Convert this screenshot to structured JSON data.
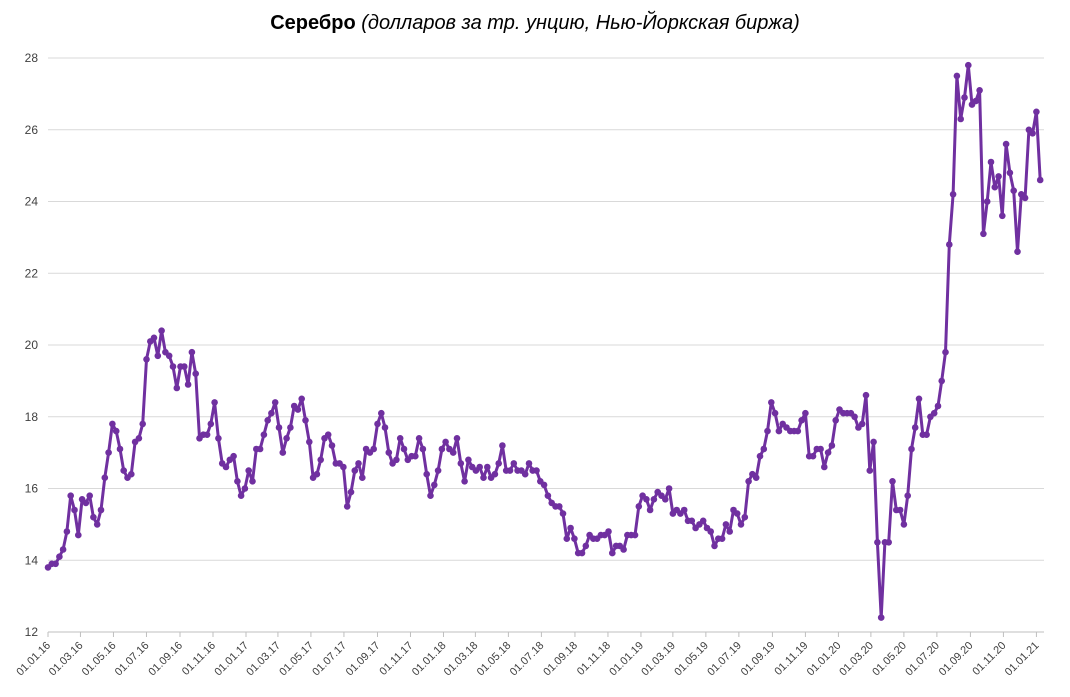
{
  "chart_data": {
    "type": "line",
    "title": "Серебро",
    "subtitle": "(долларов за тр. унцию, Нью-Йоркская биржа)",
    "ylim": [
      12,
      28
    ],
    "yticks": [
      12,
      14,
      16,
      18,
      20,
      22,
      24,
      26,
      28
    ],
    "ytick_labels": [
      "12",
      "14",
      "16",
      "18",
      "20",
      "22",
      "24",
      "26",
      "28"
    ],
    "x_start": "2016-01-01",
    "x_end": "2021-01-15",
    "xticks": [
      "2016-01-01",
      "2016-03-01",
      "2016-05-01",
      "2016-07-01",
      "2016-09-01",
      "2016-11-01",
      "2017-01-01",
      "2017-03-01",
      "2017-05-01",
      "2017-07-01",
      "2017-09-01",
      "2017-11-01",
      "2018-01-01",
      "2018-03-01",
      "2018-05-01",
      "2018-07-01",
      "2018-09-01",
      "2018-11-01",
      "2019-01-01",
      "2019-03-01",
      "2019-05-01",
      "2019-07-01",
      "2019-09-01",
      "2019-11-01",
      "2020-01-01",
      "2020-03-01",
      "2020-05-01",
      "2020-07-01",
      "2020-09-01",
      "2020-11-01",
      "2021-01-01"
    ],
    "xtick_labels": [
      "01.01.16",
      "01.03.16",
      "01.05.16",
      "01.07.16",
      "01.09.16",
      "01.11.16",
      "01.01.17",
      "01.03.17",
      "01.05.17",
      "01.07.17",
      "01.09.17",
      "01.11.17",
      "01.01.18",
      "01.03.18",
      "01.05.18",
      "01.07.18",
      "01.09.18",
      "01.11.18",
      "01.01.19",
      "01.03.19",
      "01.05.19",
      "01.07.19",
      "01.09.19",
      "01.11.19",
      "01.01.20",
      "01.03.20",
      "01.05.20",
      "01.07.20",
      "01.09.20",
      "01.11.20",
      "01.01.21"
    ],
    "grid": true,
    "legend": "none",
    "color": "#7030a0",
    "series": [
      {
        "values": [
          [
            "2016-01-01",
            13.8
          ],
          [
            "2016-01-08",
            13.9
          ],
          [
            "2016-01-15",
            13.9
          ],
          [
            "2016-01-22",
            14.1
          ],
          [
            "2016-01-29",
            14.3
          ],
          [
            "2016-02-05",
            14.8
          ],
          [
            "2016-02-12",
            15.8
          ],
          [
            "2016-02-19",
            15.4
          ],
          [
            "2016-02-26",
            14.7
          ],
          [
            "2016-03-04",
            15.7
          ],
          [
            "2016-03-11",
            15.6
          ],
          [
            "2016-03-18",
            15.8
          ],
          [
            "2016-03-25",
            15.2
          ],
          [
            "2016-04-01",
            15.0
          ],
          [
            "2016-04-08",
            15.4
          ],
          [
            "2016-04-15",
            16.3
          ],
          [
            "2016-04-22",
            17.0
          ],
          [
            "2016-04-29",
            17.8
          ],
          [
            "2016-05-06",
            17.6
          ],
          [
            "2016-05-13",
            17.1
          ],
          [
            "2016-05-20",
            16.5
          ],
          [
            "2016-05-27",
            16.3
          ],
          [
            "2016-06-03",
            16.4
          ],
          [
            "2016-06-10",
            17.3
          ],
          [
            "2016-06-17",
            17.4
          ],
          [
            "2016-06-24",
            17.8
          ],
          [
            "2016-07-01",
            19.6
          ],
          [
            "2016-07-08",
            20.1
          ],
          [
            "2016-07-15",
            20.2
          ],
          [
            "2016-07-22",
            19.7
          ],
          [
            "2016-07-29",
            20.4
          ],
          [
            "2016-08-05",
            19.8
          ],
          [
            "2016-08-12",
            19.7
          ],
          [
            "2016-08-19",
            19.4
          ],
          [
            "2016-08-26",
            18.8
          ],
          [
            "2016-09-02",
            19.4
          ],
          [
            "2016-09-09",
            19.4
          ],
          [
            "2016-09-16",
            18.9
          ],
          [
            "2016-09-23",
            19.8
          ],
          [
            "2016-09-30",
            19.2
          ],
          [
            "2016-10-07",
            17.4
          ],
          [
            "2016-10-14",
            17.5
          ],
          [
            "2016-10-21",
            17.5
          ],
          [
            "2016-10-28",
            17.8
          ],
          [
            "2016-11-04",
            18.4
          ],
          [
            "2016-11-11",
            17.4
          ],
          [
            "2016-11-18",
            16.7
          ],
          [
            "2016-11-25",
            16.6
          ],
          [
            "2016-12-02",
            16.8
          ],
          [
            "2016-12-09",
            16.9
          ],
          [
            "2016-12-16",
            16.2
          ],
          [
            "2016-12-23",
            15.8
          ],
          [
            "2016-12-30",
            16.0
          ],
          [
            "2017-01-06",
            16.5
          ],
          [
            "2017-01-13",
            16.2
          ],
          [
            "2017-01-20",
            17.1
          ],
          [
            "2017-01-27",
            17.1
          ],
          [
            "2017-02-03",
            17.5
          ],
          [
            "2017-02-10",
            17.9
          ],
          [
            "2017-02-17",
            18.1
          ],
          [
            "2017-02-24",
            18.4
          ],
          [
            "2017-03-03",
            17.7
          ],
          [
            "2017-03-10",
            17.0
          ],
          [
            "2017-03-17",
            17.4
          ],
          [
            "2017-03-24",
            17.7
          ],
          [
            "2017-03-31",
            18.3
          ],
          [
            "2017-04-07",
            18.2
          ],
          [
            "2017-04-14",
            18.5
          ],
          [
            "2017-04-21",
            17.9
          ],
          [
            "2017-04-28",
            17.3
          ],
          [
            "2017-05-05",
            16.3
          ],
          [
            "2017-05-12",
            16.4
          ],
          [
            "2017-05-19",
            16.8
          ],
          [
            "2017-05-26",
            17.4
          ],
          [
            "2017-06-02",
            17.5
          ],
          [
            "2017-06-09",
            17.2
          ],
          [
            "2017-06-16",
            16.7
          ],
          [
            "2017-06-23",
            16.7
          ],
          [
            "2017-06-30",
            16.6
          ],
          [
            "2017-07-07",
            15.5
          ],
          [
            "2017-07-14",
            15.9
          ],
          [
            "2017-07-21",
            16.5
          ],
          [
            "2017-07-28",
            16.7
          ],
          [
            "2017-08-04",
            16.3
          ],
          [
            "2017-08-11",
            17.1
          ],
          [
            "2017-08-18",
            17.0
          ],
          [
            "2017-08-25",
            17.1
          ],
          [
            "2017-09-01",
            17.8
          ],
          [
            "2017-09-08",
            18.1
          ],
          [
            "2017-09-15",
            17.7
          ],
          [
            "2017-09-22",
            17.0
          ],
          [
            "2017-09-29",
            16.7
          ],
          [
            "2017-10-06",
            16.8
          ],
          [
            "2017-10-13",
            17.4
          ],
          [
            "2017-10-20",
            17.1
          ],
          [
            "2017-10-27",
            16.8
          ],
          [
            "2017-11-03",
            16.9
          ],
          [
            "2017-11-10",
            16.9
          ],
          [
            "2017-11-17",
            17.4
          ],
          [
            "2017-11-24",
            17.1
          ],
          [
            "2017-12-01",
            16.4
          ],
          [
            "2017-12-08",
            15.8
          ],
          [
            "2017-12-15",
            16.1
          ],
          [
            "2017-12-22",
            16.5
          ],
          [
            "2017-12-29",
            17.1
          ],
          [
            "2018-01-05",
            17.3
          ],
          [
            "2018-01-12",
            17.1
          ],
          [
            "2018-01-19",
            17.0
          ],
          [
            "2018-01-26",
            17.4
          ],
          [
            "2018-02-02",
            16.7
          ],
          [
            "2018-02-09",
            16.2
          ],
          [
            "2018-02-16",
            16.8
          ],
          [
            "2018-02-23",
            16.6
          ],
          [
            "2018-03-02",
            16.5
          ],
          [
            "2018-03-09",
            16.6
          ],
          [
            "2018-03-16",
            16.3
          ],
          [
            "2018-03-23",
            16.6
          ],
          [
            "2018-03-30",
            16.3
          ],
          [
            "2018-04-06",
            16.4
          ],
          [
            "2018-04-13",
            16.7
          ],
          [
            "2018-04-20",
            17.2
          ],
          [
            "2018-04-27",
            16.5
          ],
          [
            "2018-05-04",
            16.5
          ],
          [
            "2018-05-11",
            16.7
          ],
          [
            "2018-05-18",
            16.5
          ],
          [
            "2018-05-25",
            16.5
          ],
          [
            "2018-06-01",
            16.4
          ],
          [
            "2018-06-08",
            16.7
          ],
          [
            "2018-06-15",
            16.5
          ],
          [
            "2018-06-22",
            16.5
          ],
          [
            "2018-06-29",
            16.2
          ],
          [
            "2018-07-06",
            16.1
          ],
          [
            "2018-07-13",
            15.8
          ],
          [
            "2018-07-20",
            15.6
          ],
          [
            "2018-07-27",
            15.5
          ],
          [
            "2018-08-03",
            15.5
          ],
          [
            "2018-08-10",
            15.3
          ],
          [
            "2018-08-17",
            14.6
          ],
          [
            "2018-08-24",
            14.9
          ],
          [
            "2018-08-31",
            14.6
          ],
          [
            "2018-09-07",
            14.2
          ],
          [
            "2018-09-14",
            14.2
          ],
          [
            "2018-09-21",
            14.4
          ],
          [
            "2018-09-28",
            14.7
          ],
          [
            "2018-10-05",
            14.6
          ],
          [
            "2018-10-12",
            14.6
          ],
          [
            "2018-10-19",
            14.7
          ],
          [
            "2018-10-26",
            14.7
          ],
          [
            "2018-11-02",
            14.8
          ],
          [
            "2018-11-09",
            14.2
          ],
          [
            "2018-11-16",
            14.4
          ],
          [
            "2018-11-23",
            14.4
          ],
          [
            "2018-11-30",
            14.3
          ],
          [
            "2018-12-07",
            14.7
          ],
          [
            "2018-12-14",
            14.7
          ],
          [
            "2018-12-21",
            14.7
          ],
          [
            "2018-12-28",
            15.5
          ],
          [
            "2019-01-04",
            15.8
          ],
          [
            "2019-01-11",
            15.7
          ],
          [
            "2019-01-18",
            15.4
          ],
          [
            "2019-01-25",
            15.7
          ],
          [
            "2019-02-01",
            15.9
          ],
          [
            "2019-02-08",
            15.8
          ],
          [
            "2019-02-15",
            15.7
          ],
          [
            "2019-02-22",
            16.0
          ],
          [
            "2019-03-01",
            15.3
          ],
          [
            "2019-03-08",
            15.4
          ],
          [
            "2019-03-15",
            15.3
          ],
          [
            "2019-03-22",
            15.4
          ],
          [
            "2019-03-29",
            15.1
          ],
          [
            "2019-04-05",
            15.1
          ],
          [
            "2019-04-12",
            14.9
          ],
          [
            "2019-04-19",
            15.0
          ],
          [
            "2019-04-26",
            15.1
          ],
          [
            "2019-05-03",
            14.9
          ],
          [
            "2019-05-10",
            14.8
          ],
          [
            "2019-05-17",
            14.4
          ],
          [
            "2019-05-24",
            14.6
          ],
          [
            "2019-05-31",
            14.6
          ],
          [
            "2019-06-07",
            15.0
          ],
          [
            "2019-06-14",
            14.8
          ],
          [
            "2019-06-21",
            15.4
          ],
          [
            "2019-06-28",
            15.3
          ],
          [
            "2019-07-05",
            15.0
          ],
          [
            "2019-07-12",
            15.2
          ],
          [
            "2019-07-19",
            16.2
          ],
          [
            "2019-07-26",
            16.4
          ],
          [
            "2019-08-02",
            16.3
          ],
          [
            "2019-08-09",
            16.9
          ],
          [
            "2019-08-16",
            17.1
          ],
          [
            "2019-08-23",
            17.6
          ],
          [
            "2019-08-30",
            18.4
          ],
          [
            "2019-09-06",
            18.1
          ],
          [
            "2019-09-13",
            17.6
          ],
          [
            "2019-09-20",
            17.8
          ],
          [
            "2019-09-27",
            17.7
          ],
          [
            "2019-10-04",
            17.6
          ],
          [
            "2019-10-11",
            17.6
          ],
          [
            "2019-10-18",
            17.6
          ],
          [
            "2019-10-25",
            17.9
          ],
          [
            "2019-11-01",
            18.1
          ],
          [
            "2019-11-08",
            16.9
          ],
          [
            "2019-11-15",
            16.9
          ],
          [
            "2019-11-22",
            17.1
          ],
          [
            "2019-11-29",
            17.1
          ],
          [
            "2019-12-06",
            16.6
          ],
          [
            "2019-12-13",
            17.0
          ],
          [
            "2019-12-20",
            17.2
          ],
          [
            "2019-12-27",
            17.9
          ],
          [
            "2020-01-03",
            18.2
          ],
          [
            "2020-01-10",
            18.1
          ],
          [
            "2020-01-17",
            18.1
          ],
          [
            "2020-01-24",
            18.1
          ],
          [
            "2020-01-31",
            18.0
          ],
          [
            "2020-02-07",
            17.7
          ],
          [
            "2020-02-14",
            17.8
          ],
          [
            "2020-02-21",
            18.6
          ],
          [
            "2020-02-28",
            16.5
          ],
          [
            "2020-03-06",
            17.3
          ],
          [
            "2020-03-13",
            14.5
          ],
          [
            "2020-03-20",
            12.4
          ],
          [
            "2020-03-27",
            14.5
          ],
          [
            "2020-04-03",
            14.5
          ],
          [
            "2020-04-10",
            16.2
          ],
          [
            "2020-04-17",
            15.4
          ],
          [
            "2020-04-24",
            15.4
          ],
          [
            "2020-05-01",
            15.0
          ],
          [
            "2020-05-08",
            15.8
          ],
          [
            "2020-05-15",
            17.1
          ],
          [
            "2020-05-22",
            17.7
          ],
          [
            "2020-05-29",
            18.5
          ],
          [
            "2020-06-05",
            17.5
          ],
          [
            "2020-06-12",
            17.5
          ],
          [
            "2020-06-19",
            18.0
          ],
          [
            "2020-06-26",
            18.1
          ],
          [
            "2020-07-03",
            18.3
          ],
          [
            "2020-07-10",
            19.0
          ],
          [
            "2020-07-17",
            19.8
          ],
          [
            "2020-07-24",
            22.8
          ],
          [
            "2020-07-31",
            24.2
          ],
          [
            "2020-08-07",
            27.5
          ],
          [
            "2020-08-14",
            26.3
          ],
          [
            "2020-08-21",
            26.9
          ],
          [
            "2020-08-28",
            27.8
          ],
          [
            "2020-09-04",
            26.7
          ],
          [
            "2020-09-11",
            26.8
          ],
          [
            "2020-09-18",
            27.1
          ],
          [
            "2020-09-25",
            23.1
          ],
          [
            "2020-10-02",
            24.0
          ],
          [
            "2020-10-09",
            25.1
          ],
          [
            "2020-10-16",
            24.4
          ],
          [
            "2020-10-23",
            24.7
          ],
          [
            "2020-10-30",
            23.6
          ],
          [
            "2020-11-06",
            25.6
          ],
          [
            "2020-11-13",
            24.8
          ],
          [
            "2020-11-20",
            24.3
          ],
          [
            "2020-11-27",
            22.6
          ],
          [
            "2020-12-04",
            24.2
          ],
          [
            "2020-12-11",
            24.1
          ],
          [
            "2020-12-18",
            26.0
          ],
          [
            "2020-12-25",
            25.9
          ],
          [
            "2021-01-01",
            26.5
          ],
          [
            "2021-01-08",
            24.6
          ]
        ]
      }
    ]
  }
}
